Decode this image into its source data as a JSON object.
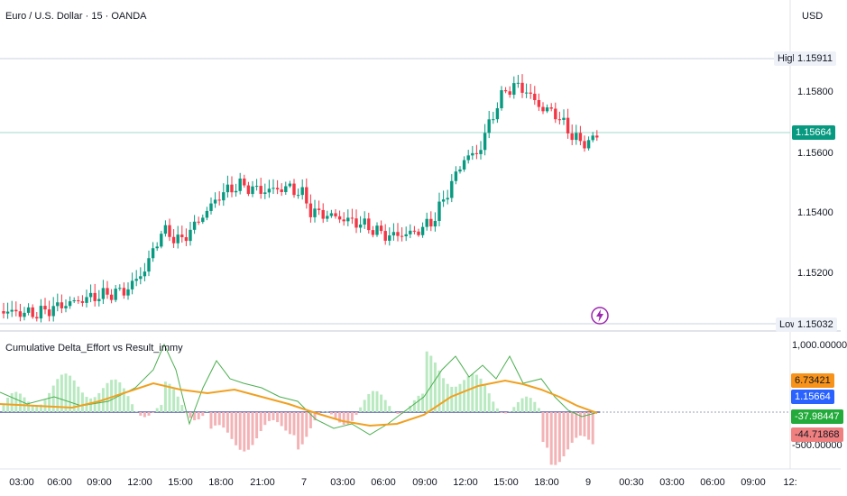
{
  "header": {
    "title": "Euro / U.S. Dollar · 15 · OANDA",
    "currency": "USD"
  },
  "price_axis": {
    "ticks": [
      "1.15800",
      "1.15600",
      "1.15400",
      "1.15200"
    ],
    "high_label": "High",
    "high_value": "1.15911",
    "low_label": "Low",
    "low_value": "1.15032",
    "current_value": "1.15664"
  },
  "indicator": {
    "title": "Cumulative Delta_Effort vs Result_immy",
    "axis_top": "1,000.00000",
    "axis_bottom": "-500.00000",
    "tags": [
      "6.73421",
      "1.15664",
      "-37.98447",
      "-44.71868"
    ]
  },
  "time_axis": [
    "03:00",
    "06:00",
    "09:00",
    "12:00",
    "15:00",
    "18:00",
    "21:00",
    "7",
    "03:00",
    "06:00",
    "09:00",
    "12:00",
    "15:00",
    "18:00",
    "9",
    "00:30",
    "03:00",
    "06:00",
    "09:00",
    "12:"
  ],
  "colors": {
    "up": "#089981",
    "down": "#f23645",
    "ma": "#f0a020",
    "line": "#4caf50",
    "hist_up": "#b9e9c0",
    "hist_down": "#f3b3b6",
    "current": "#089981",
    "tag_orange": "#f7931a",
    "tag_blue": "#2962ff",
    "tag_green": "#22ab3a",
    "tag_red": "#f08080"
  },
  "icons": {
    "flash": "lightning-icon"
  }
}
